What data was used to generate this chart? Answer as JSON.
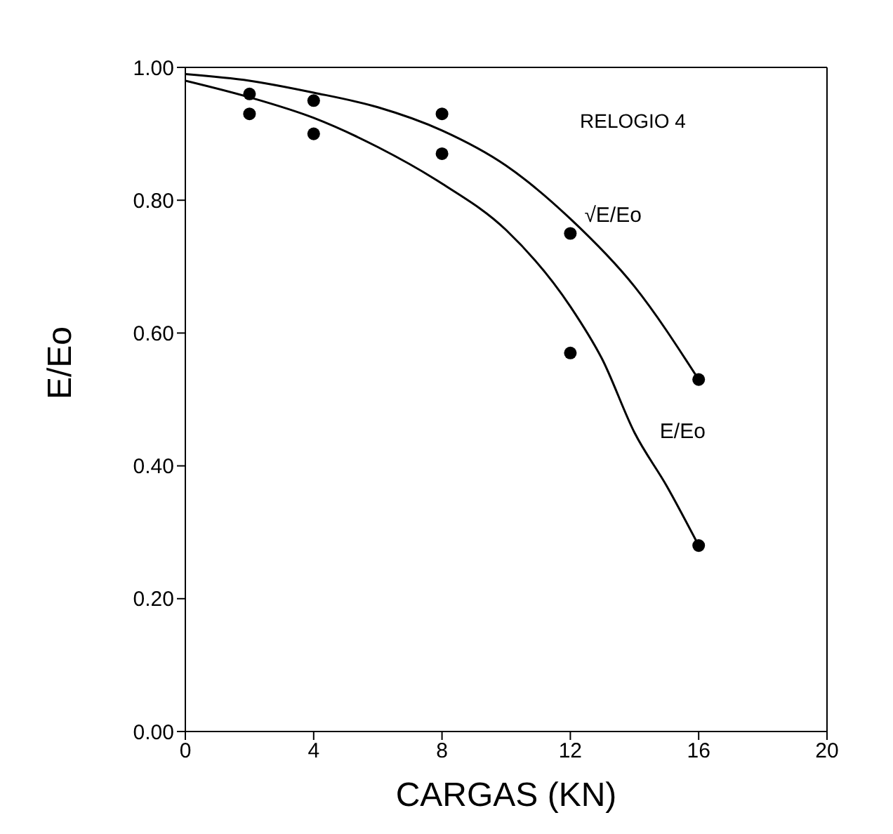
{
  "chart_data": {
    "type": "scatter",
    "xlabel": "CARGAS (KN)",
    "ylabel": "E/Eo",
    "xlim": [
      0,
      20
    ],
    "xticks": [
      0,
      4,
      8,
      12,
      16,
      20
    ],
    "ylim": [
      0,
      1
    ],
    "yticks": [
      {
        "value": 0,
        "label": "0.00"
      },
      {
        "value": 0.2,
        "label": "0.20"
      },
      {
        "value": 0.4,
        "label": "0.40"
      },
      {
        "value": 0.6,
        "label": "0.60"
      },
      {
        "value": 0.8,
        "label": "0.80"
      },
      {
        "value": 1,
        "label": "1.00"
      }
    ],
    "series": [
      {
        "color": "#000000",
        "x": [
          2,
          4,
          8,
          12,
          16
        ],
        "values": [
          0.96,
          0.95,
          0.93,
          0.75,
          0.53
        ]
      },
      {
        "color": "#000000",
        "x": [
          2,
          4,
          8,
          12,
          16
        ],
        "values": [
          0.93,
          0.9,
          0.87,
          0.57,
          0.28
        ]
      },
      {
        "type": "line",
        "name": "√E/Eo",
        "color": "#000000",
        "x": [
          0,
          2,
          4,
          6,
          8,
          10,
          12,
          14,
          16
        ],
        "values": [
          0.99,
          0.98,
          0.962,
          0.94,
          0.905,
          0.852,
          0.772,
          0.67,
          0.53
        ]
      },
      {
        "type": "line",
        "name": "E/Eo",
        "color": "#000000",
        "x": [
          0,
          2,
          4,
          6,
          8,
          10,
          12,
          13,
          14,
          15,
          16
        ],
        "values": [
          0.98,
          0.955,
          0.924,
          0.88,
          0.825,
          0.755,
          0.64,
          0.56,
          0.45,
          0.37,
          0.28
        ]
      }
    ],
    "annotations": [
      "RELOGIO 4"
    ]
  }
}
